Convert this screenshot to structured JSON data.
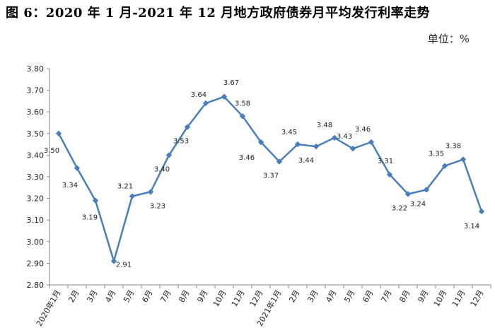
{
  "title": "图 6：2020 年 1 月-2021 年 12 月地方政府债券月平均发行利率走势",
  "unit_label": "单位：%",
  "chart_data": {
    "type": "line",
    "title": "图 6：2020 年 1 月-2021 年 12 月地方政府债券月平均发行利率走势",
    "xlabel": "",
    "ylabel": "",
    "ylim": [
      2.8,
      3.8
    ],
    "yticks": [
      "2.80",
      "2.90",
      "3.00",
      "3.10",
      "3.20",
      "3.30",
      "3.40",
      "3.50",
      "3.60",
      "3.70",
      "3.80"
    ],
    "grid": "none",
    "legend": "none",
    "color": "#4a7ebb",
    "categories": [
      "2020年1月",
      "2月",
      "3月",
      "4月",
      "5月",
      "6月",
      "7月",
      "8月",
      "9月",
      "10月",
      "11月",
      "12月",
      "2021年1月",
      "2月",
      "3月",
      "4月",
      "5月",
      "6月",
      "7月",
      "8月",
      "9月",
      "10月",
      "11月",
      "12月"
    ],
    "values": [
      3.5,
      3.34,
      3.19,
      2.91,
      3.21,
      3.23,
      3.4,
      3.53,
      3.64,
      3.67,
      3.58,
      3.46,
      3.37,
      3.45,
      3.44,
      3.48,
      3.43,
      3.46,
      3.31,
      3.22,
      3.24,
      3.35,
      3.38,
      3.14
    ]
  }
}
